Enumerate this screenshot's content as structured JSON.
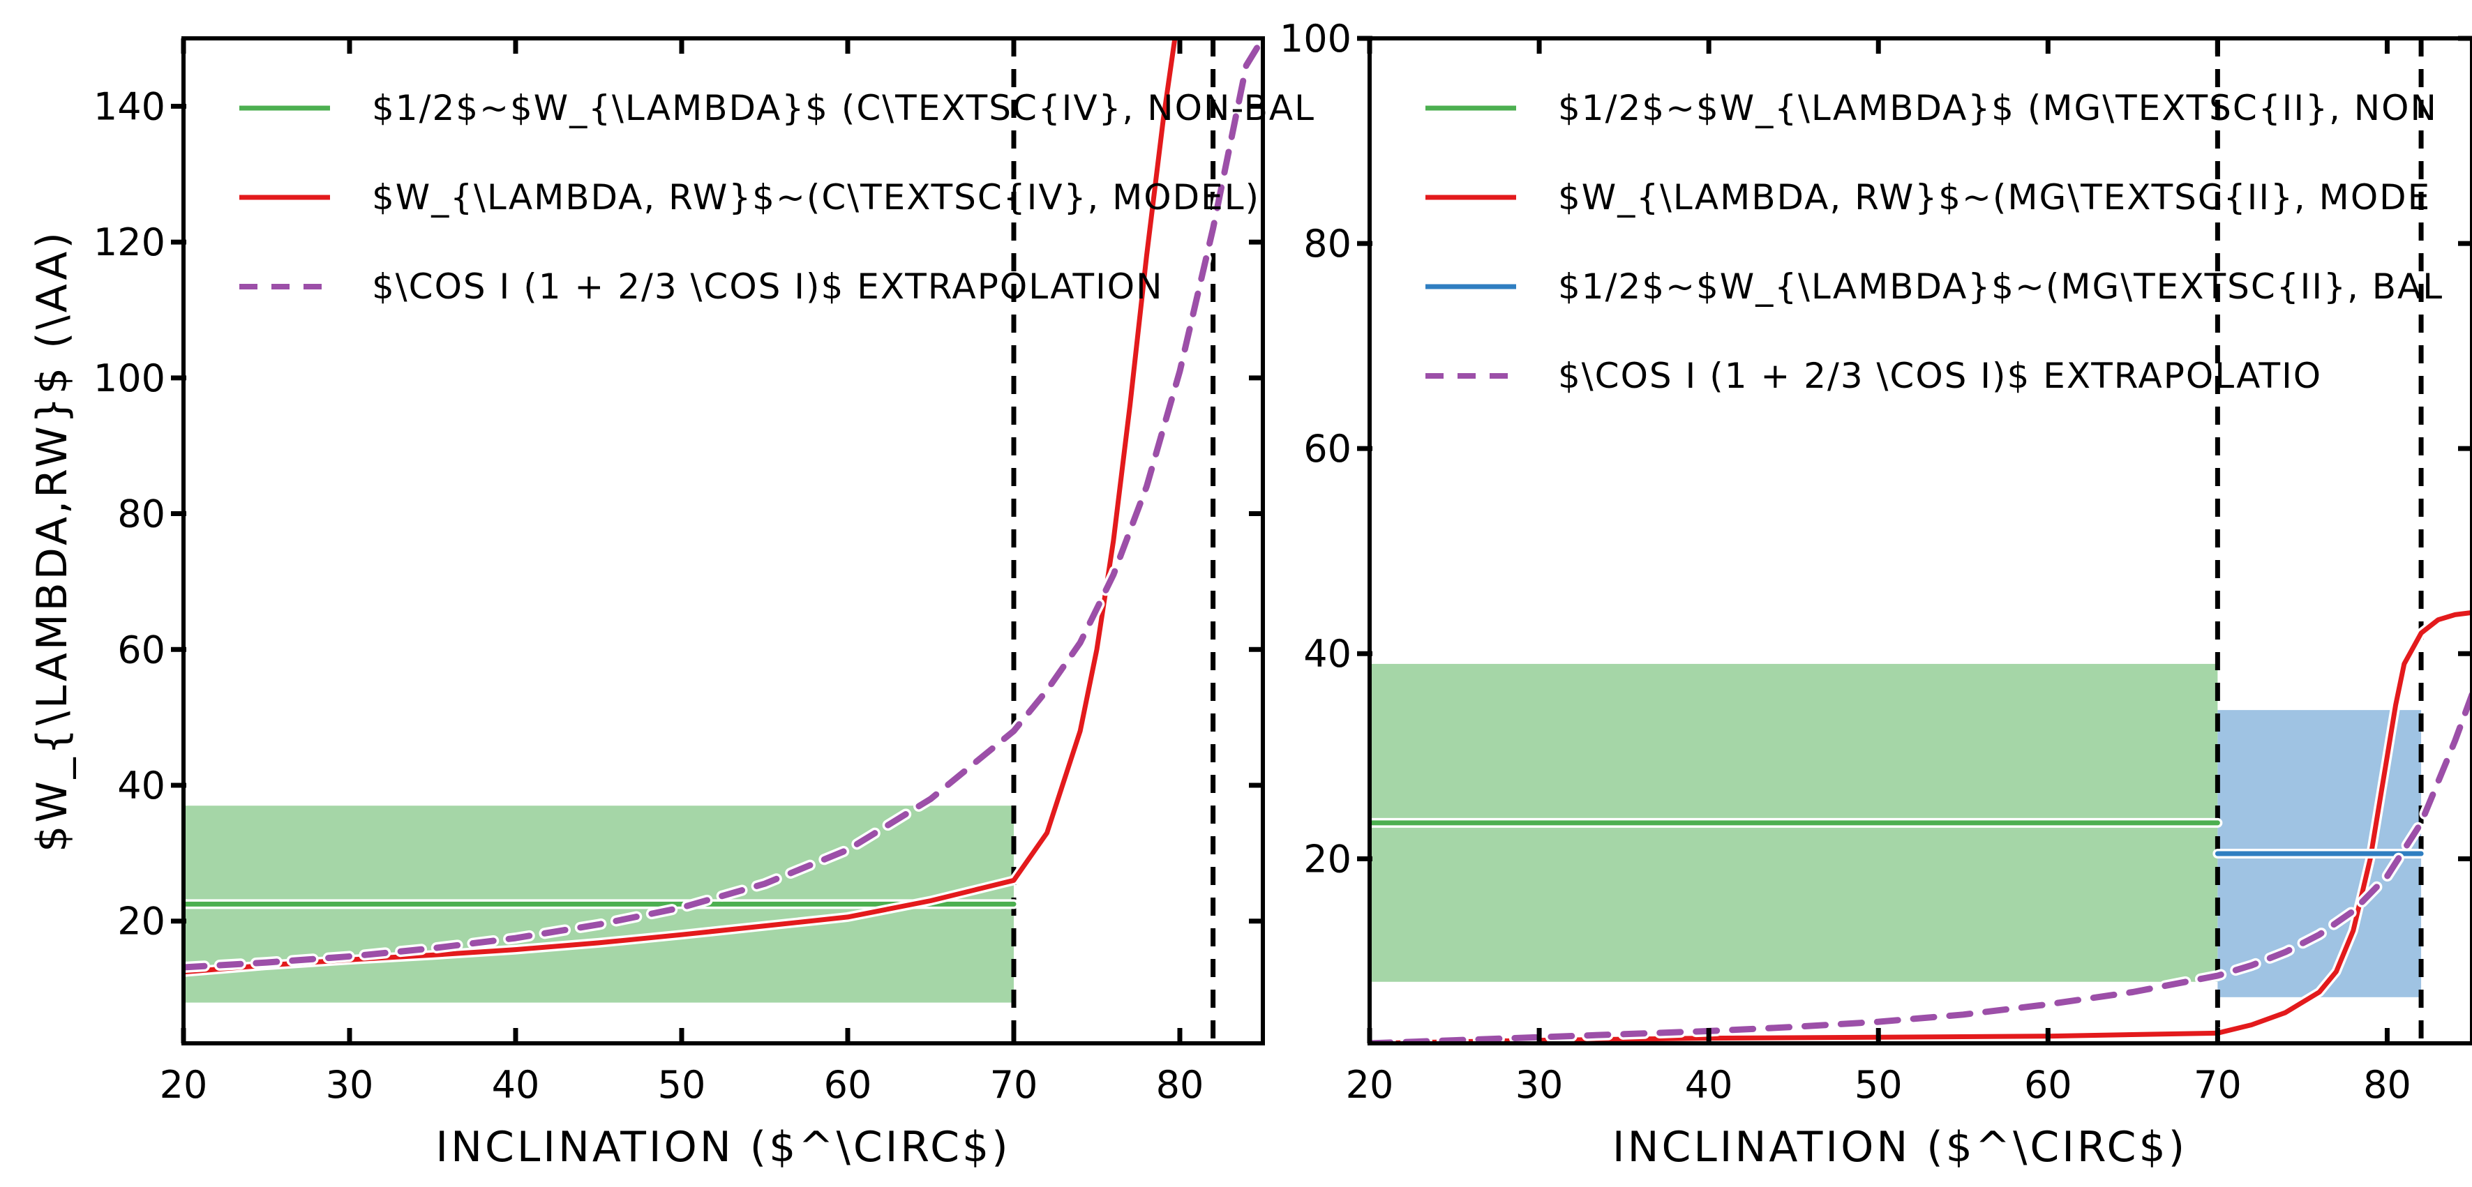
{
  "chart_data": [
    {
      "type": "line",
      "xlabel": "INCLINATION ($^\\CIRC$)",
      "ylabel": "$W_{\\LAMBDA,RW}$ (\\AA)",
      "xlim": [
        20,
        85
      ],
      "ylim": [
        2,
        150
      ],
      "x_ticks": [
        20,
        30,
        40,
        50,
        60,
        70,
        80
      ],
      "y_ticks": [
        20,
        40,
        60,
        80,
        100,
        120,
        140
      ],
      "x_tick_labels": [
        "20",
        "30",
        "40",
        "50",
        "60",
        "70",
        "80"
      ],
      "y_tick_labels": [
        "20",
        "40",
        "60",
        "80",
        "100",
        "120",
        "140"
      ],
      "vlines": [
        70,
        82
      ],
      "legend_position": "top-left",
      "bands": [
        {
          "series": "$1/2$~$W_{\\LAMBDA}$ (C\\TEXTSC{IV}, NON-BAL",
          "x": [
            20,
            70
          ],
          "y": [
            8,
            37
          ],
          "color": "#a5d6a7"
        }
      ],
      "series": [
        {
          "name": "$1/2$~$W_{\\LAMBDA}$ (C\\TEXTSC{IV}, NON-BAL",
          "color": "#4caf50",
          "style": "solid",
          "x": [
            20,
            70
          ],
          "y": [
            22.5,
            22.5
          ]
        },
        {
          "name": "$W_{\\LAMBDA, RW}$~(C\\TEXTSC{IV}, MODEL)",
          "color": "#e31a1c",
          "style": "solid",
          "x": [
            20,
            25,
            30,
            35,
            40,
            45,
            50,
            55,
            60,
            65,
            70,
            72,
            74,
            75,
            76,
            77,
            78,
            79,
            79.7
          ],
          "y": [
            12.5,
            13.5,
            14.3,
            15,
            15.8,
            16.8,
            18,
            19.3,
            20.6,
            23,
            26,
            33,
            48,
            60,
            76,
            96,
            118,
            138,
            150
          ]
        },
        {
          "name": "$\\COS I (1 + 2/3 \\COS I)$ EXTRAPOLATION",
          "color": "#9c4fa8",
          "style": "dashed",
          "x": [
            20,
            25,
            30,
            35,
            40,
            45,
            50,
            55,
            60,
            65,
            70,
            72,
            74,
            76,
            78,
            80,
            82,
            84,
            85
          ],
          "y": [
            13.2,
            13.9,
            14.8,
            16,
            17.5,
            19.5,
            22,
            25.5,
            30.5,
            38,
            48,
            54,
            61,
            71,
            84,
            101,
            122,
            146,
            150
          ]
        }
      ]
    },
    {
      "type": "line",
      "xlabel": "INCLINATION ($^\\CIRC$)",
      "ylabel": "",
      "xlim": [
        20,
        85
      ],
      "ylim": [
        2,
        100
      ],
      "x_ticks": [
        20,
        30,
        40,
        50,
        60,
        70,
        80
      ],
      "y_ticks": [
        20,
        40,
        60,
        80,
        100
      ],
      "x_tick_labels": [
        "20",
        "30",
        "40",
        "50",
        "60",
        "70",
        "80"
      ],
      "y_tick_labels": [
        "20",
        "40",
        "60",
        "80",
        "100"
      ],
      "vlines": [
        70,
        82
      ],
      "legend_position": "top-left",
      "bands": [
        {
          "series": "$1/2$~$W_{\\LAMBDA}$ (MG\\TEXTSC{II}, NON",
          "x": [
            20,
            70
          ],
          "y": [
            8,
            39
          ],
          "color": "#a5d6a7"
        },
        {
          "series": "$1/2$~$W_{\\LAMBDA}$~(MG\\TEXTSC{II}, BAL",
          "x": [
            70,
            82
          ],
          "y": [
            6.5,
            34.5
          ],
          "color": "#9fc3e3"
        }
      ],
      "series": [
        {
          "name": "$1/2$~$W_{\\LAMBDA}$ (MG\\TEXTSC{II}, NON",
          "color": "#4caf50",
          "style": "solid",
          "x": [
            20,
            70
          ],
          "y": [
            23.5,
            23.5
          ]
        },
        {
          "name": "$W_{\\LAMBDA, RW}$~(MG\\TEXTSC{II}, MODE",
          "color": "#e31a1c",
          "style": "solid",
          "x": [
            20,
            30,
            40,
            50,
            60,
            70,
            72,
            74,
            76,
            77,
            78,
            79,
            80,
            80.5,
            81,
            82,
            83,
            84,
            85
          ],
          "y": [
            2,
            2.3,
            2.5,
            2.6,
            2.7,
            3,
            3.8,
            5,
            7,
            9,
            13,
            20,
            30,
            35,
            39,
            42,
            43.3,
            43.8,
            44
          ]
        },
        {
          "name": "$1/2$~$W_{\\LAMBDA}$~(MG\\TEXTSC{II}, BAL",
          "color": "#2f7ec1",
          "style": "solid",
          "x": [
            70,
            82
          ],
          "y": [
            20.5,
            20.5
          ]
        },
        {
          "name": "$\\COS I (1 + 2/3 \\COS I)$ EXTRAPOLATIO",
          "color": "#9c4fa8",
          "style": "dashed",
          "x": [
            20,
            25,
            30,
            35,
            40,
            45,
            50,
            55,
            60,
            65,
            70,
            72,
            74,
            76,
            78,
            80,
            82,
            84,
            85
          ],
          "y": [
            2,
            2.3,
            2.6,
            2.9,
            3.2,
            3.6,
            4.1,
            4.8,
            5.8,
            7,
            8.6,
            9.6,
            10.9,
            12.6,
            14.9,
            18.3,
            23.5,
            31.5,
            36
          ]
        }
      ]
    }
  ]
}
